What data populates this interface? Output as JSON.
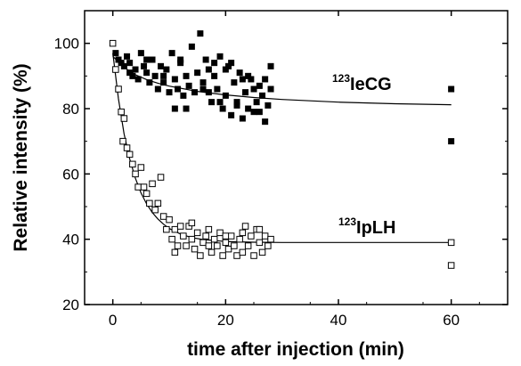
{
  "chart_data": {
    "type": "scatter",
    "title": "",
    "xlabel": "time after injection (min)",
    "ylabel": "Relative intensity (%)",
    "xlim": [
      -5,
      70
    ],
    "ylim": [
      20,
      110
    ],
    "xticks": [
      0,
      20,
      40,
      60
    ],
    "yticks": [
      20,
      40,
      60,
      80,
      100
    ],
    "grid": false,
    "legend": "none",
    "series": [
      {
        "label_sup": "123",
        "label_main": "IeCG",
        "marker": "filled-square",
        "color": "#000000",
        "points": [
          [
            0.5,
            97
          ],
          [
            1,
            95
          ],
          [
            1.5,
            94
          ],
          [
            2,
            93
          ],
          [
            2.5,
            96
          ],
          [
            3,
            91
          ],
          [
            3.5,
            90
          ],
          [
            4,
            92
          ],
          [
            4.5,
            89
          ],
          [
            5,
            97
          ],
          [
            5.5,
            93
          ],
          [
            6,
            91
          ],
          [
            6.5,
            88
          ],
          [
            7,
            95
          ],
          [
            7.5,
            90
          ],
          [
            8,
            86
          ],
          [
            8.5,
            93
          ],
          [
            9,
            88
          ],
          [
            9.5,
            92
          ],
          [
            10,
            85
          ],
          [
            10.5,
            97
          ],
          [
            11,
            89
          ],
          [
            11.5,
            86
          ],
          [
            12,
            94
          ],
          [
            12.5,
            84
          ],
          [
            13,
            90
          ],
          [
            13.5,
            87
          ],
          [
            14,
            99
          ],
          [
            14.5,
            85
          ],
          [
            15,
            91
          ],
          [
            15.5,
            103
          ],
          [
            16,
            88
          ],
          [
            16.5,
            95
          ],
          [
            17,
            85
          ],
          [
            17.5,
            82
          ],
          [
            18,
            90
          ],
          [
            18.5,
            86
          ],
          [
            19,
            96
          ],
          [
            19.5,
            80
          ],
          [
            20,
            84
          ],
          [
            20.5,
            93
          ],
          [
            21,
            78
          ],
          [
            21.5,
            88
          ],
          [
            22,
            82
          ],
          [
            22.5,
            91
          ],
          [
            23,
            77
          ],
          [
            23.5,
            85
          ],
          [
            24,
            80
          ],
          [
            24.5,
            89
          ],
          [
            25,
            79
          ],
          [
            25.5,
            82
          ],
          [
            26,
            87
          ],
          [
            26.5,
            84
          ],
          [
            27,
            76
          ],
          [
            27.5,
            81
          ],
          [
            28,
            86
          ],
          [
            3,
            94
          ],
          [
            6,
            95
          ],
          [
            9,
            90
          ],
          [
            12,
            95
          ],
          [
            13,
            80
          ],
          [
            16,
            86
          ],
          [
            18,
            94
          ],
          [
            21,
            94
          ],
          [
            22,
            81
          ],
          [
            24,
            90
          ],
          [
            25,
            86
          ],
          [
            26,
            79
          ],
          [
            27,
            89
          ],
          [
            28,
            93
          ],
          [
            11,
            80
          ],
          [
            19,
            82
          ],
          [
            23,
            89
          ],
          [
            17,
            92
          ],
          [
            20,
            92
          ],
          [
            60,
            86
          ],
          [
            60,
            70
          ]
        ],
        "fit": [
          [
            0,
            96
          ],
          [
            2,
            92.6
          ],
          [
            4,
            90.4
          ],
          [
            6,
            88.9
          ],
          [
            8,
            87.8
          ],
          [
            10,
            86.9
          ],
          [
            15,
            85.3
          ],
          [
            20,
            84.2
          ],
          [
            25,
            83.4
          ],
          [
            30,
            82.8
          ],
          [
            40,
            82.0
          ],
          [
            50,
            81.5
          ],
          [
            60,
            81.2
          ]
        ]
      },
      {
        "label_sup": "123",
        "label_main": "IpLH",
        "marker": "open-square",
        "color": "#000000",
        "points": [
          [
            0,
            100
          ],
          [
            0.5,
            92
          ],
          [
            1,
            86
          ],
          [
            1.5,
            79
          ],
          [
            2,
            77
          ],
          [
            1.8,
            70
          ],
          [
            2.5,
            68
          ],
          [
            3,
            66
          ],
          [
            3.5,
            63
          ],
          [
            4,
            60
          ],
          [
            4.5,
            56
          ],
          [
            5,
            62
          ],
          [
            5.5,
            56
          ],
          [
            6,
            54
          ],
          [
            6.5,
            51
          ],
          [
            7,
            57
          ],
          [
            7.5,
            49
          ],
          [
            8,
            51
          ],
          [
            8.5,
            59
          ],
          [
            9,
            47
          ],
          [
            9.5,
            43
          ],
          [
            10,
            46
          ],
          [
            10.5,
            40
          ],
          [
            11,
            43
          ],
          [
            11.5,
            38
          ],
          [
            12,
            44
          ],
          [
            12.5,
            41
          ],
          [
            13,
            38
          ],
          [
            13.5,
            44
          ],
          [
            14,
            40
          ],
          [
            14.5,
            37
          ],
          [
            15,
            42
          ],
          [
            15.5,
            35
          ],
          [
            16,
            39
          ],
          [
            16.5,
            41
          ],
          [
            17,
            38
          ],
          [
            17.5,
            36
          ],
          [
            18,
            40
          ],
          [
            18.5,
            38
          ],
          [
            19,
            42
          ],
          [
            19.5,
            35
          ],
          [
            20,
            39
          ],
          [
            20.5,
            37
          ],
          [
            21,
            41
          ],
          [
            21.5,
            38
          ],
          [
            22,
            35
          ],
          [
            22.5,
            40
          ],
          [
            23,
            36
          ],
          [
            23.5,
            44
          ],
          [
            24,
            38
          ],
          [
            24.5,
            41
          ],
          [
            25,
            35
          ],
          [
            25.5,
            43
          ],
          [
            26,
            39
          ],
          [
            26.5,
            36
          ],
          [
            27,
            41
          ],
          [
            27.5,
            38
          ],
          [
            28,
            40
          ],
          [
            11,
            36
          ],
          [
            14,
            45
          ],
          [
            17,
            43
          ],
          [
            20,
            41
          ],
          [
            23,
            42
          ],
          [
            26,
            43
          ],
          [
            60,
            39
          ],
          [
            60,
            32
          ]
        ],
        "fit": [
          [
            0,
            97
          ],
          [
            1,
            83
          ],
          [
            2,
            72.3
          ],
          [
            3,
            64.5
          ],
          [
            4,
            58.7
          ],
          [
            5,
            54.2
          ],
          [
            6,
            50.8
          ],
          [
            7,
            48.2
          ],
          [
            8,
            46.2
          ],
          [
            9,
            44.6
          ],
          [
            10,
            43.3
          ],
          [
            12,
            41.6
          ],
          [
            14,
            40.5
          ],
          [
            16,
            39.9
          ],
          [
            20,
            39.3
          ],
          [
            25,
            39.1
          ],
          [
            30,
            39
          ],
          [
            60,
            39
          ]
        ]
      }
    ]
  }
}
